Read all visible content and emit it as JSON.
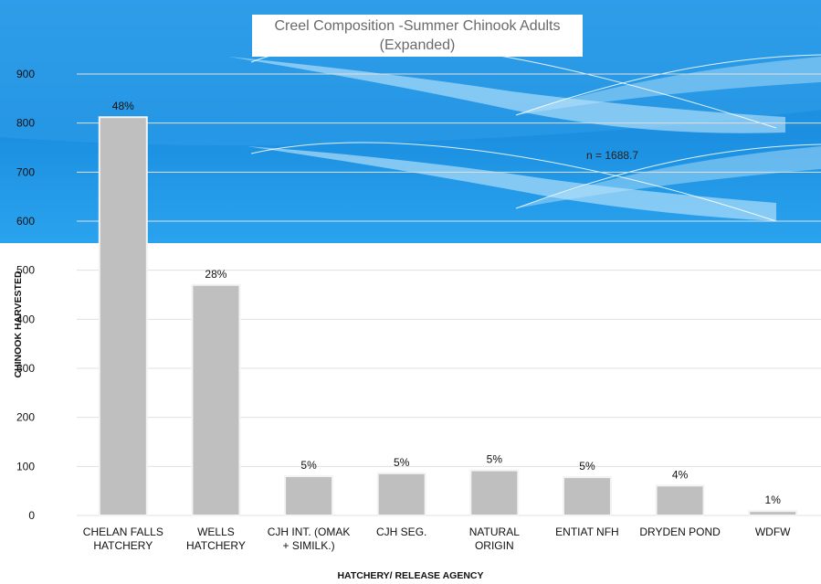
{
  "chart_data": {
    "type": "bar",
    "title": "Creel Composition -Summer Chinook Adults",
    "subtitle": "(Expanded)",
    "ylabel": "CHINOOK HARVESTED",
    "xlabel": "HATCHERY/ RELEASE AGENCY",
    "annotation": "n = 1688.7",
    "ylim": [
      0,
      1000
    ],
    "yticks": [
      0,
      100,
      200,
      300,
      400,
      500,
      600,
      700,
      800,
      900
    ],
    "grid": true,
    "legend": "none",
    "categories": [
      [
        "CHELAN FALLS",
        "HATCHERY"
      ],
      [
        "WELLS",
        "HATCHERY"
      ],
      [
        "CJH INT. (OMAK",
        "+ SIMILK.)"
      ],
      [
        "CJH SEG."
      ],
      [
        "NATURAL",
        "ORIGIN"
      ],
      [
        "ENTIAT NFH"
      ],
      [
        "DRYDEN POND"
      ],
      [
        "WDFW"
      ]
    ],
    "values": [
      812,
      470,
      80,
      86,
      92,
      78,
      61,
      9
    ],
    "data_labels": [
      "48%",
      "28%",
      "5%",
      "5%",
      "5%",
      "5%",
      "4%",
      "1%"
    ]
  },
  "colors": {
    "bar": "#bfbfbf",
    "bar_edge": "#f3f3f3",
    "background_blue": "#1e90e0",
    "background_light": "#8fd2f7",
    "grid": "#e0e0e0",
    "tick_text": "#111111"
  }
}
